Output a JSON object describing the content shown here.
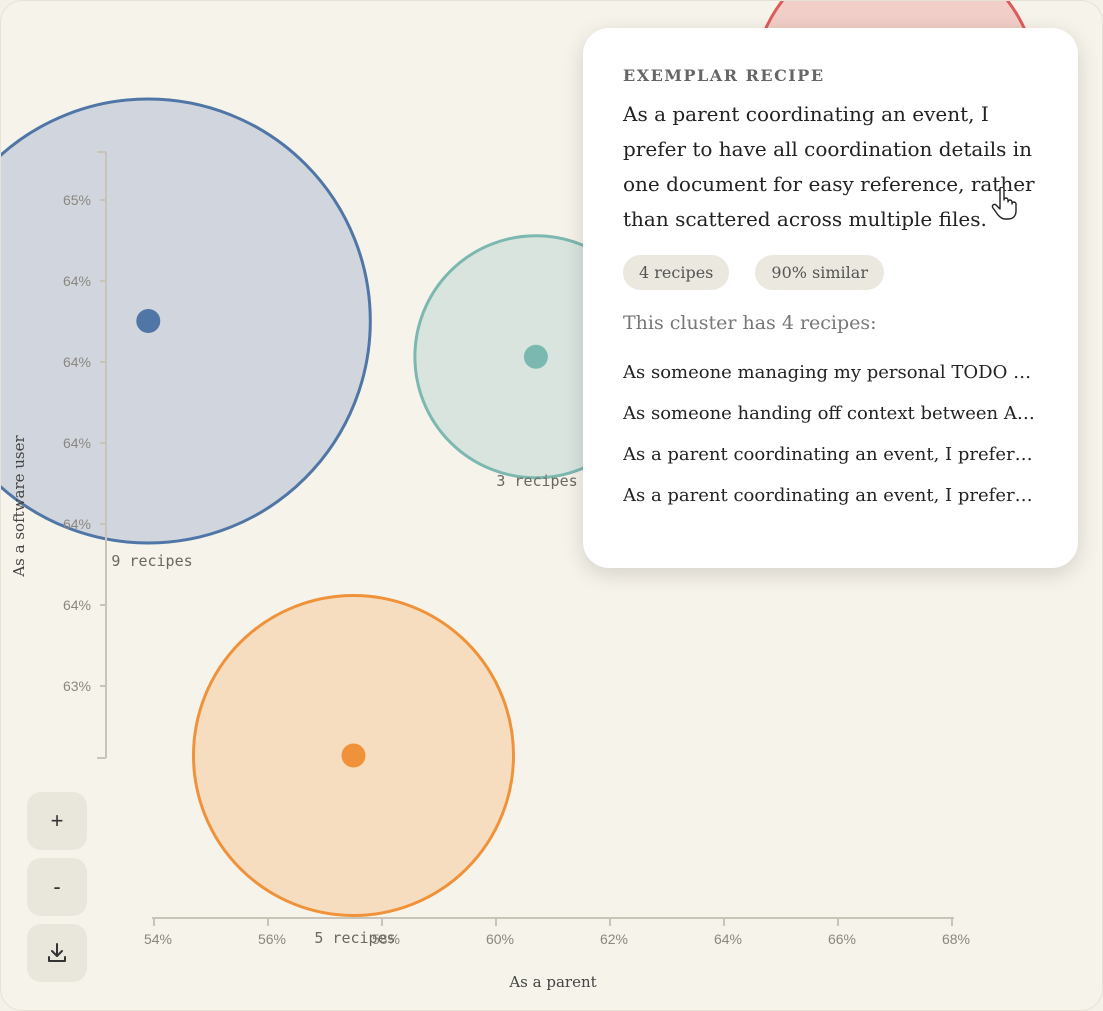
{
  "chart_data": {
    "type": "scatter",
    "xlabel": "As a parent",
    "ylabel": "As a software user",
    "x_ticks": [
      "54%",
      "56%",
      "58%",
      "60%",
      "62%",
      "64%",
      "66%",
      "68%"
    ],
    "y_ticks": [
      "65%",
      "64%",
      "64%",
      "64%",
      "64%",
      "64%",
      "63%"
    ],
    "clusters": [
      {
        "x": 53.9,
        "y": 64.35,
        "count_label": "9 recipes",
        "color": "#4f76a6",
        "fill": "#cdd4dc"
      },
      {
        "x": 60.7,
        "y": 64.22,
        "count_label": "3 recipes",
        "color": "#7bb8b0",
        "fill": "#d6e3dc"
      },
      {
        "x": 57.5,
        "y": 62.77,
        "count_label": "5 recipes",
        "color": "#f0923a",
        "fill": "#f5dbbb"
      },
      {
        "x": 67.0,
        "y": 65.2,
        "count_label": "",
        "color": "#dd5c5c",
        "fill": "#f0cbc3"
      }
    ]
  },
  "controls": {
    "zoom_in_label": "+",
    "zoom_out_label": "-"
  },
  "panel": {
    "heading": "EXEMPLAR RECIPE",
    "quote": "As a parent coordinating an event, I prefer to have all coordination details in one document for easy reference, rather than scattered across multiple files.",
    "chips": [
      "4 recipes",
      "90% similar"
    ],
    "cluster_count": "This cluster has 4 recipes:",
    "members": [
      "As someone managing my personal TODO system, I prefer to keep everything in one place",
      "As someone handing off context between AI sessions, I prefer a single summary document",
      "As a parent coordinating an event, I prefer to have all coordination details in one document",
      "As a parent coordinating an event, I prefer to keep the schedule and contacts together"
    ]
  }
}
